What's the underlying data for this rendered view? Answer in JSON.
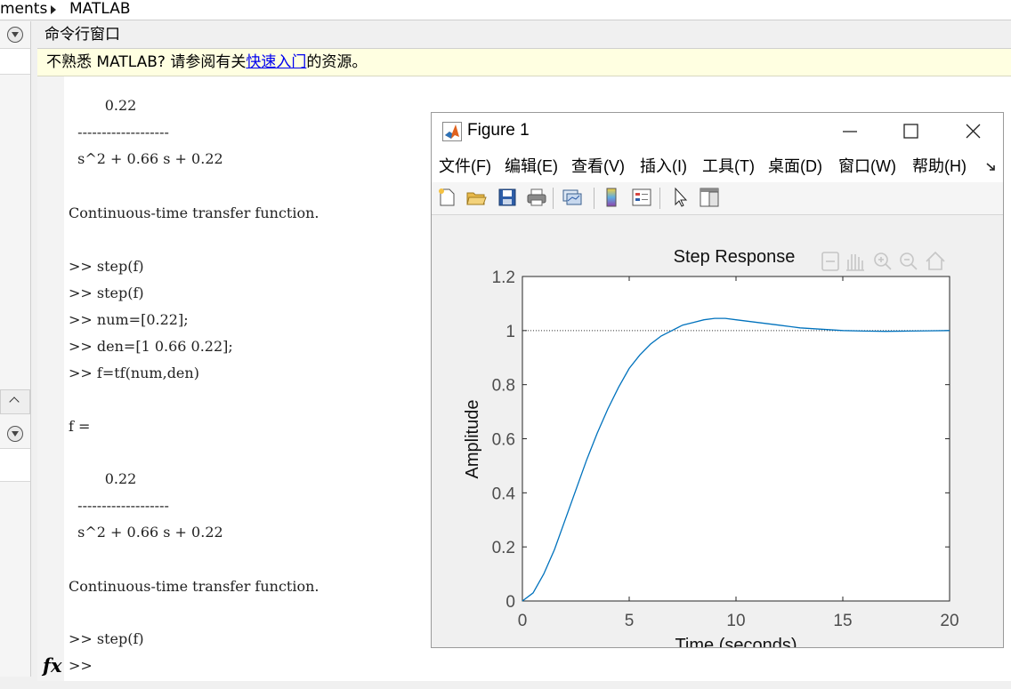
{
  "breadcrumb": {
    "items": [
      "ments",
      "MATLAB"
    ]
  },
  "command_window": {
    "title": "命令行窗口",
    "info": {
      "prefix": "不熟悉 MATLAB? 请参阅有关",
      "link": "快速入门",
      "suffix": "的资源。"
    },
    "lines": [
      "        0.22",
      "  -------------------",
      "  s^2 + 0.66 s + 0.22",
      "",
      "Continuous-time transfer function.",
      "",
      ">> step(f)",
      ">> step(f)",
      ">> num=[0.22];",
      ">> den=[1 0.66 0.22];",
      ">> f=tf(num,den)",
      "",
      "f =",
      "",
      "",
      "        0.22",
      "  -------------------",
      "  s^2 + 0.66 s + 0.22",
      "",
      "Continuous-time transfer function.",
      "",
      ">> step(f)"
    ],
    "prompt": ">>",
    "fx_label": "fx"
  },
  "figure": {
    "title": "Figure 1",
    "menu": [
      "文件(F)",
      "编辑(E)",
      "查看(V)",
      "插入(I)",
      "工具(T)",
      "桌面(D)",
      "窗口(W)",
      "帮助(H)"
    ],
    "toolbar_icons": [
      "new-figure-icon",
      "open-file-icon",
      "save-icon",
      "print-icon",
      "link-plot-icon",
      "colorbar-icon",
      "legend-icon",
      "pointer-icon",
      "property-editor-icon"
    ],
    "axes_toolbar_icons": [
      "export-icon",
      "pan-icon",
      "zoom-in-icon",
      "zoom-out-icon",
      "home-icon"
    ]
  },
  "chart_data": {
    "type": "line",
    "title": "Step Response",
    "xlabel": "Time (seconds)",
    "ylabel": "Amplitude",
    "xlim": [
      0,
      20
    ],
    "ylim": [
      0,
      1.2
    ],
    "xticks": [
      "0",
      "5",
      "10",
      "15",
      "20"
    ],
    "yticks": [
      "0",
      "0.2",
      "0.4",
      "0.6",
      "0.8",
      "1",
      "1.2"
    ],
    "series": [
      {
        "color": "#0072bd",
        "x": [
          0,
          0.5,
          1,
          1.5,
          2,
          2.5,
          3,
          3.5,
          4,
          4.5,
          5,
          5.5,
          6,
          6.5,
          7,
          7.5,
          8,
          8.5,
          9,
          9.5,
          10,
          10.5,
          11,
          11.5,
          12,
          13,
          14,
          15,
          16,
          17,
          18,
          19,
          20
        ],
        "y": [
          0,
          0.03,
          0.1,
          0.19,
          0.3,
          0.41,
          0.52,
          0.62,
          0.71,
          0.79,
          0.86,
          0.91,
          0.95,
          0.98,
          1.0,
          1.02,
          1.03,
          1.04,
          1.045,
          1.045,
          1.04,
          1.035,
          1.03,
          1.025,
          1.02,
          1.01,
          1.005,
          1.0,
          0.998,
          0.997,
          0.998,
          0.999,
          1.0
        ]
      }
    ],
    "reference_line": {
      "y": 1,
      "style": "dotted"
    },
    "grid": false
  },
  "colors": {
    "line": "#0072bd",
    "link": "#0000ee",
    "infobar_bg": "#ffffe1"
  }
}
